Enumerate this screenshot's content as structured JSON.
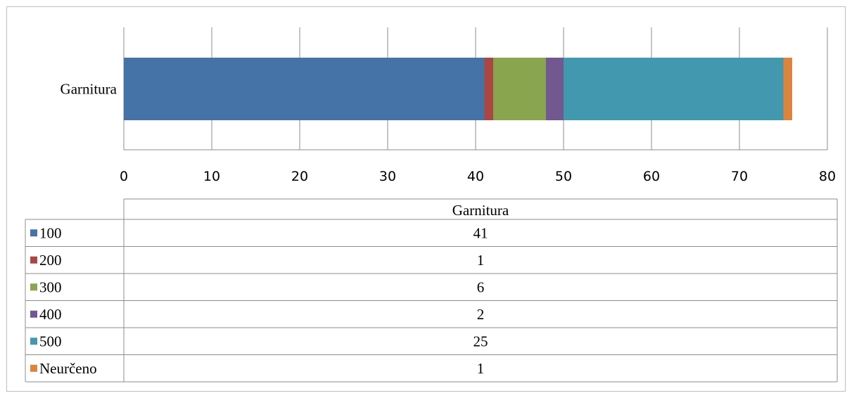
{
  "chart_data": {
    "type": "bar",
    "orientation": "horizontal",
    "stacked": true,
    "categories": [
      "Garnitura"
    ],
    "series": [
      {
        "name": "100",
        "values": [
          41
        ],
        "color": "#4572A7"
      },
      {
        "name": "200",
        "values": [
          1
        ],
        "color": "#AA4643"
      },
      {
        "name": "300",
        "values": [
          6
        ],
        "color": "#89A54E"
      },
      {
        "name": "400",
        "values": [
          2
        ],
        "color": "#71588F"
      },
      {
        "name": "500",
        "values": [
          25
        ],
        "color": "#4198AF"
      },
      {
        "name": "Neurčeno",
        "values": [
          1
        ],
        "color": "#DB843D"
      }
    ],
    "xlim": [
      0,
      80
    ],
    "x_ticks": [
      "0",
      "10",
      "20",
      "30",
      "40",
      "50",
      "60",
      "70",
      "80"
    ],
    "grid": true,
    "data_table": {
      "header": "Garnitura",
      "shows_legend_keys": true
    }
  }
}
